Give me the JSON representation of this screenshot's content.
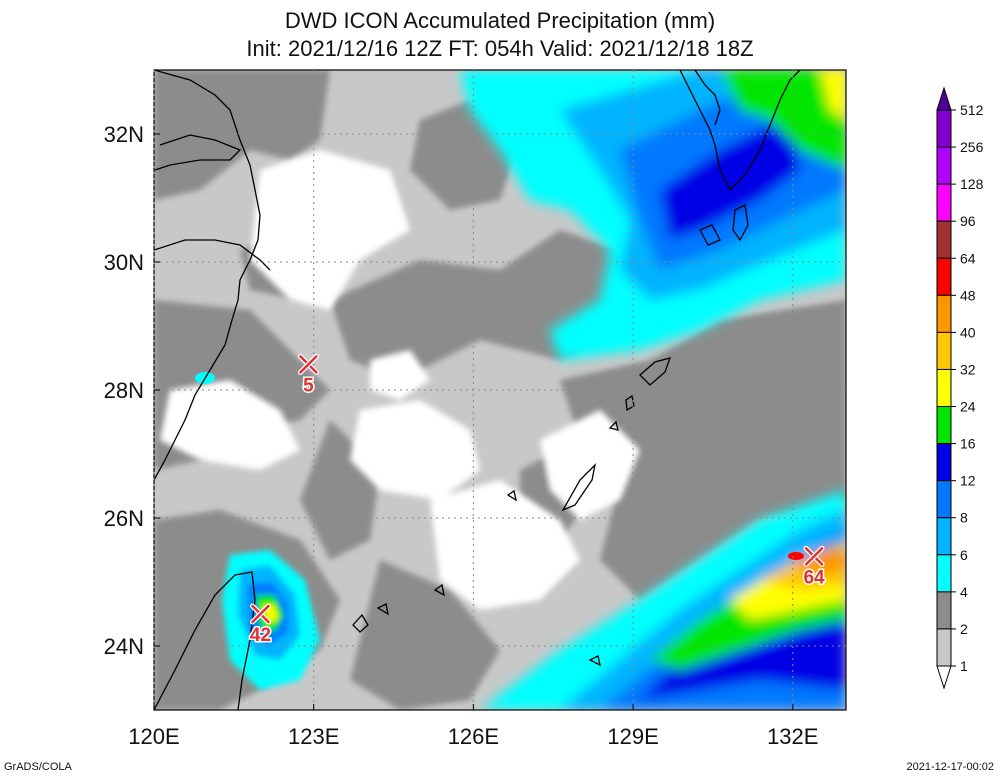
{
  "title_line1": "DWD ICON Accumulated Precipitation (mm)",
  "title_line2": "Init: 2021/12/16 12Z  FT: 054h  Valid: 2021/12/18 18Z",
  "footer_left": "GrADS/COLA",
  "footer_right": "2021-12-17-00:02",
  "axes": {
    "lon_ticks": [
      "120E",
      "123E",
      "126E",
      "129E",
      "132E"
    ],
    "lon_values": [
      120,
      123,
      126,
      129,
      132
    ],
    "lat_ticks": [
      "32N",
      "30N",
      "28N",
      "26N",
      "24N"
    ],
    "lat_values": [
      32,
      30,
      28,
      26,
      24
    ],
    "lon_range": [
      120,
      133
    ],
    "lat_range": [
      23,
      33
    ]
  },
  "colorbar": {
    "levels": [
      "1",
      "2",
      "4",
      "6",
      "8",
      "12",
      "16",
      "24",
      "32",
      "40",
      "48",
      "64",
      "96",
      "128",
      "256",
      "512"
    ],
    "colors": [
      "#ffffff",
      "#c8c8c8",
      "#8c8c8c",
      "#00ffff",
      "#00b4ff",
      "#0078ff",
      "#0000e6",
      "#00e600",
      "#ffff00",
      "#ffc800",
      "#ff9600",
      "#ff0000",
      "#a03232",
      "#ff00ff",
      "#b400ff",
      "#8200d2",
      "#500096"
    ]
  },
  "markers": [
    {
      "lon": 122.9,
      "lat": 28.4,
      "label": "5"
    },
    {
      "lon": 122.0,
      "lat": 24.5,
      "label": "42"
    },
    {
      "lon": 132.4,
      "lat": 25.4,
      "label": "64"
    }
  ]
}
